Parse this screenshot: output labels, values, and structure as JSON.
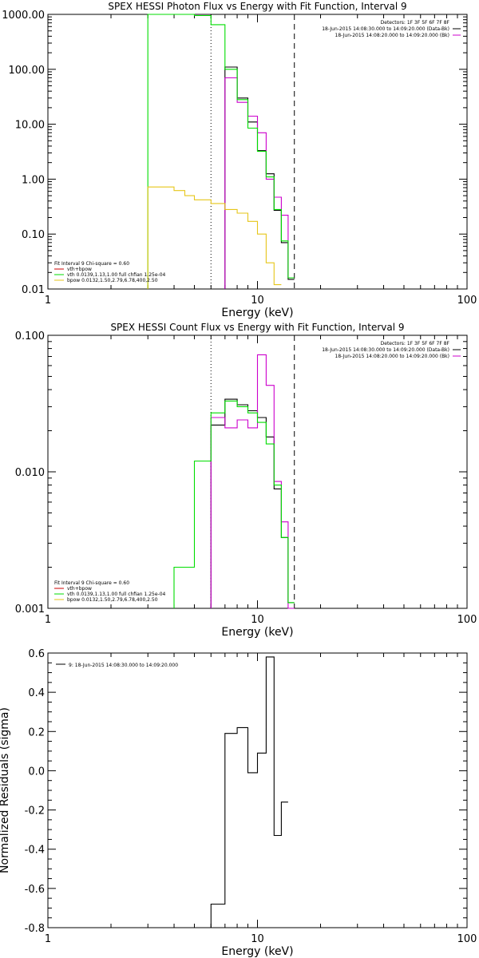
{
  "colors": {
    "data": "#000000",
    "total": "#cc00cc",
    "vth": "#00dd00",
    "bpow": "#e6c619",
    "background_model": "#cc0000",
    "dotted_line": "#000000",
    "dashed_line": "#000000"
  },
  "chart_data": [
    {
      "type": "line",
      "title": "SPEX HESSI Photon Flux vs Energy with Fit Function, Interval 9",
      "xlabel": "Energy (keV)",
      "ylabel": "",
      "x_scale": "log",
      "y_scale": "log",
      "xlim": [
        1,
        100
      ],
      "ylim": [
        0.01,
        1000
      ],
      "x_ticks": [
        "1",
        "10",
        "100"
      ],
      "y_ticks": [
        "0.01",
        "0.10",
        "1.00",
        "10.00",
        "100.00",
        "1000.00"
      ],
      "vlines": [
        {
          "x": 6.0,
          "style": "dotted"
        },
        {
          "x": 15.0,
          "style": "dashed"
        }
      ],
      "legend_top": {
        "position": "top-right",
        "lines": [
          "Detectors: 1F 3F 5F 6F 7F 8F",
          "18-Jun-2015 14:08:30.000 to 14:09:20.000 (Data-Bk)",
          "18-Jun-2015 14:08:20.000 to 14:09:20.000 (Bk)"
        ]
      },
      "legend_bottom": {
        "position": "bottom-left",
        "header": "Fit Interval 9   Chi-square = 0.60",
        "entries": [
          "vth+bpow",
          "vth 0.0139,1.13,1.00  full chfian 1.25e-04",
          "bpow 0.0132,1.50,2.79,6.78,400,2.50"
        ]
      },
      "edges": [
        3.0,
        3.5,
        4.0,
        4.5,
        5.0,
        6.0,
        7.0,
        8.0,
        9.0,
        10.0,
        11.0,
        12.0,
        13.0,
        14.0,
        15.0,
        16.0,
        17.0
      ],
      "series": [
        {
          "name": "",
          "key": "data",
          "values": [
            null,
            null,
            null,
            null,
            null,
            null,
            110,
            30,
            11,
            3.3,
            1.25,
            0.27,
            0.07,
            0.015,
            null,
            null
          ]
        },
        {
          "name": "vth+bpow",
          "key": "total",
          "values": [
            null,
            null,
            null,
            null,
            null,
            null,
            70,
            25,
            14,
            7,
            1.0,
            0.47,
            0.22,
            0.016,
            null,
            null
          ]
        },
        {
          "name": "vth",
          "key": "vth",
          "values": [
            1500,
            1500,
            1500,
            1500,
            950,
            650,
            100,
            28,
            8.5,
            3.2,
            1.1,
            0.28,
            0.075,
            0.016,
            null,
            null
          ]
        },
        {
          "name": "bpow",
          "key": "bpow",
          "values": [
            0.72,
            0.72,
            0.62,
            0.5,
            0.42,
            0.36,
            0.28,
            0.24,
            0.17,
            0.1,
            0.03,
            0.012,
            null,
            null,
            null,
            null
          ]
        }
      ]
    },
    {
      "type": "line",
      "title": "SPEX HESSI Count Flux vs Energy with Fit Function, Interval 9",
      "xlabel": "Energy (keV)",
      "ylabel": "",
      "x_scale": "log",
      "y_scale": "log",
      "xlim": [
        1,
        100
      ],
      "ylim": [
        0.001,
        0.1
      ],
      "x_ticks": [
        "1",
        "10",
        "100"
      ],
      "y_ticks": [
        "0.001",
        "0.010",
        "0.100"
      ],
      "vlines": [
        {
          "x": 6.0,
          "style": "dotted"
        },
        {
          "x": 15.0,
          "style": "dashed"
        }
      ],
      "legend_top": {
        "position": "top-right",
        "lines": [
          "Detectors: 1F 3F 5F 6F 7F 8F",
          "18-Jun-2015 14:08:30.000 to 14:09:20.000 (Data-Bk)",
          "18-Jun-2015 14:08:20.000 to 14:09:20.000 (Bk)"
        ]
      },
      "legend_bottom": {
        "position": "bottom-left",
        "header": "Fit Interval 9   Chi-square = 0.60",
        "entries": [
          "vth+bpow",
          "vth 0.0139,1.13,1.00  full chfian 1.25e-04",
          "bpow 0.0132,1.50,2.79,6.78,400,2.50"
        ]
      },
      "edges": [
        4.0,
        5.0,
        6.0,
        7.0,
        8.0,
        9.0,
        10.0,
        11.0,
        12.0,
        13.0,
        14.0,
        15.0,
        16.0,
        17.0
      ],
      "series": [
        {
          "name": "",
          "key": "data",
          "values": [
            null,
            null,
            0.022,
            0.034,
            0.031,
            0.028,
            0.025,
            0.018,
            0.0075,
            0.0033,
            0.0011,
            null,
            null
          ]
        },
        {
          "name": "vth+bpow",
          "key": "total",
          "values": [
            null,
            null,
            0.025,
            0.021,
            0.024,
            0.021,
            0.072,
            0.043,
            0.0085,
            0.0043,
            0.001,
            null,
            null
          ]
        },
        {
          "name": "vth",
          "key": "vth",
          "values": [
            0.002,
            0.012,
            0.027,
            0.033,
            0.03,
            0.027,
            0.023,
            0.016,
            0.008,
            0.0033,
            0.0011,
            null,
            null
          ]
        }
      ]
    },
    {
      "type": "line",
      "title": "",
      "xlabel": "Energy (keV)",
      "ylabel": "Normalized Residuals (sigma)",
      "x_scale": "log",
      "y_scale": "linear",
      "xlim": [
        1,
        100
      ],
      "ylim": [
        -0.8,
        0.6
      ],
      "x_ticks": [
        "1",
        "10",
        "100"
      ],
      "y_ticks": [
        "-0.8",
        "-0.6",
        "-0.4",
        "-0.2",
        "0.0",
        "0.2",
        "0.4",
        "0.6"
      ],
      "legend_top": {
        "position": "top-left",
        "lines": [
          "9: 18-Jun-2015 14:08:30.000 to 14:09:20.000"
        ]
      },
      "edges": [
        6.0,
        7.0,
        8.0,
        9.0,
        10.0,
        11.0,
        12.0,
        13.0,
        14.0,
        15.0
      ],
      "series": [
        {
          "name": "",
          "key": "data",
          "values": [
            -0.68,
            0.19,
            0.22,
            -0.01,
            0.09,
            0.58,
            -0.33,
            -0.16,
            null
          ]
        }
      ]
    }
  ]
}
